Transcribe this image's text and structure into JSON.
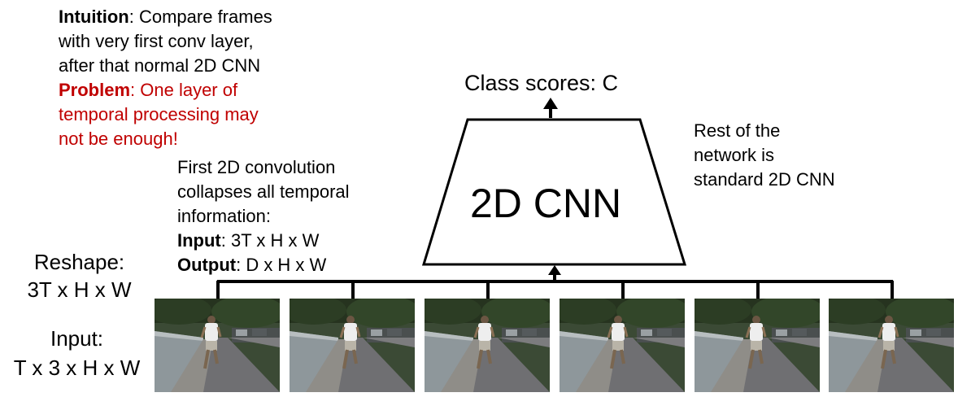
{
  "intuition": {
    "label": "Intuition",
    "text_1": ": Compare frames",
    "text_2": "with very first conv layer,",
    "text_3": "after that normal 2D CNN"
  },
  "problem": {
    "label": "Problem",
    "text_1": ": One layer of",
    "text_2": "temporal processing may",
    "text_3": "not be enough!"
  },
  "first_conv": {
    "line_1": "First 2D convolution",
    "line_2": "collapses all temporal",
    "line_3": "information:",
    "input_label": "Input",
    "input_value": ": 3T x H x W",
    "output_label": "Output",
    "output_value": ": D x H x W"
  },
  "class_scores": "Class scores: C",
  "cnn_label": "2D CNN",
  "rest": {
    "line_1": "Rest of the",
    "line_2": "network is",
    "line_3": "standard 2D CNN"
  },
  "reshape": {
    "line_1": "Reshape:",
    "line_2": "3T x H x W"
  },
  "input": {
    "line_1": "Input:",
    "line_2": "T x 3 x H x W"
  },
  "colors": {
    "problem": "#c00000",
    "line": "#000000"
  },
  "frames": [
    {
      "name": "frame-1"
    },
    {
      "name": "frame-2"
    },
    {
      "name": "frame-3"
    },
    {
      "name": "frame-4"
    },
    {
      "name": "frame-5"
    },
    {
      "name": "frame-6"
    }
  ]
}
